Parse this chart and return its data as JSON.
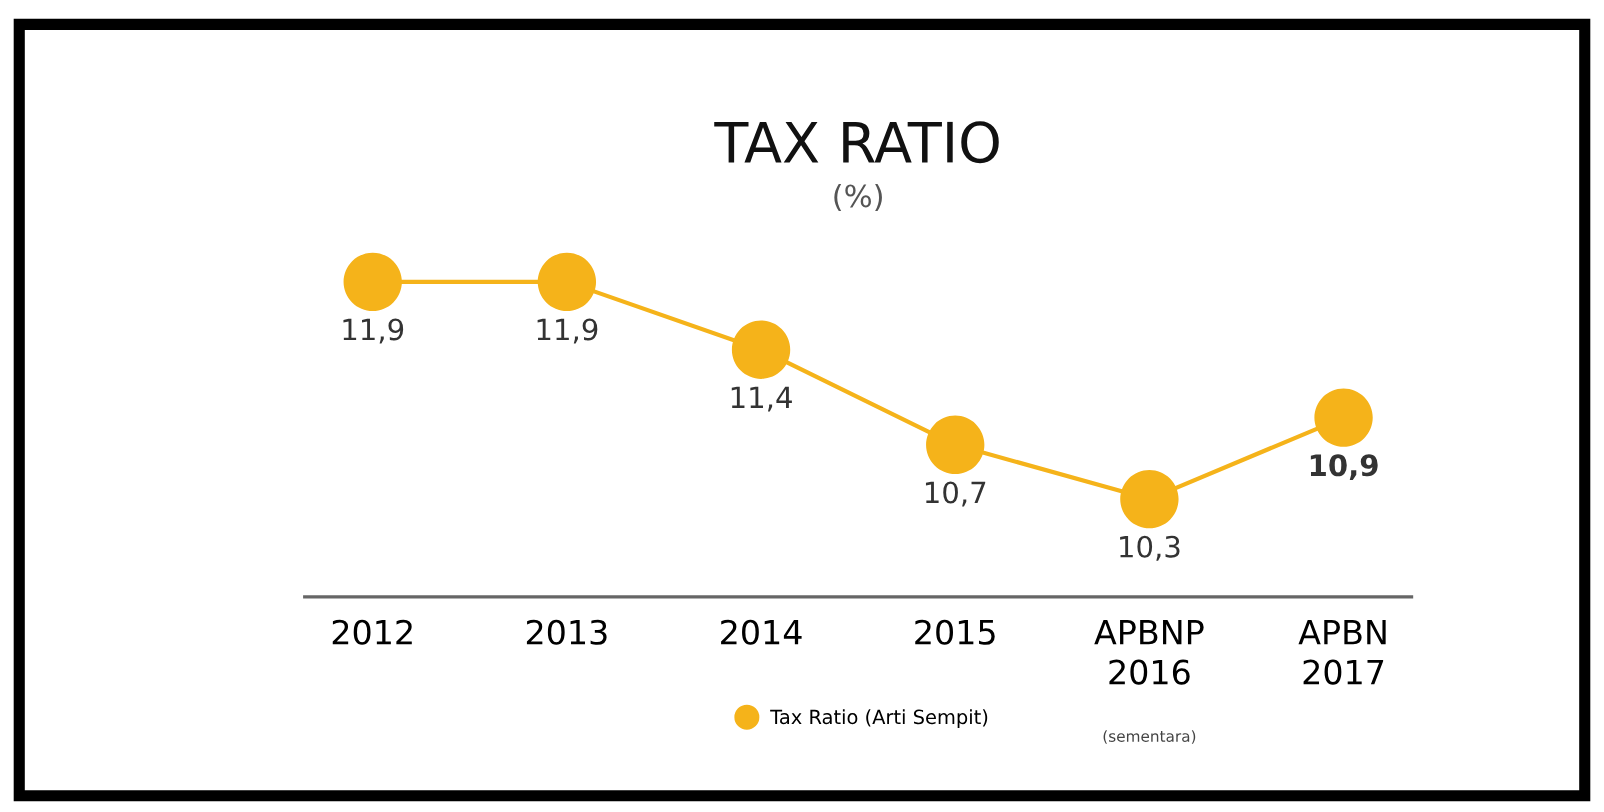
{
  "chart_data": {
    "type": "line",
    "title": "TAX RATIO",
    "subtitle": "(%)",
    "categories": [
      "2012",
      "2013",
      "2014",
      "2015",
      "APBNP\n2016",
      "APBN\n2017"
    ],
    "series": [
      {
        "name": "Tax Ratio (Arti Sempit)",
        "color": "#f5b31a",
        "values": [
          11.9,
          11.9,
          11.4,
          10.7,
          10.3,
          10.9
        ],
        "value_labels": [
          "11,9",
          "11,9",
          "11,4",
          "10,7",
          "10,3",
          "10,9"
        ]
      }
    ],
    "annotations": [
      "(sementara)"
    ],
    "marker": "circle",
    "line_style": "solid",
    "legend": "bottom",
    "grid": false
  }
}
